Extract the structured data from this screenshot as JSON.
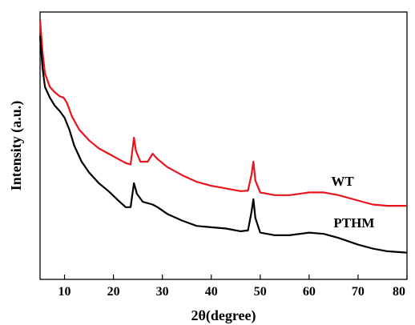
{
  "chart_data": {
    "type": "line",
    "title": "",
    "xlabel": "2θ(degree)",
    "ylabel": "Intensity (a.u.)",
    "xlim": [
      5,
      80
    ],
    "ylim": [
      0,
      100
    ],
    "x_ticks": [
      10,
      20,
      30,
      40,
      50,
      60,
      70,
      80
    ],
    "y_ticks_shown": false,
    "grid": false,
    "legend": "inline labels",
    "series": [
      {
        "name": "WT",
        "color": "#e8141b",
        "points": [
          [
            5,
            97
          ],
          [
            5.5,
            85
          ],
          [
            6,
            77
          ],
          [
            7,
            72
          ],
          [
            8,
            70
          ],
          [
            9,
            68.5
          ],
          [
            9.8,
            68
          ],
          [
            10.5,
            66
          ],
          [
            11.5,
            61
          ],
          [
            13,
            56
          ],
          [
            15,
            52
          ],
          [
            17,
            49
          ],
          [
            19,
            47
          ],
          [
            21,
            45
          ],
          [
            22.5,
            43.5
          ],
          [
            23.5,
            43
          ],
          [
            24.2,
            53
          ],
          [
            24.6,
            48
          ],
          [
            25.5,
            44
          ],
          [
            27,
            44
          ],
          [
            28,
            47
          ],
          [
            29,
            45
          ],
          [
            31,
            42
          ],
          [
            34,
            39
          ],
          [
            37,
            36.5
          ],
          [
            40,
            35
          ],
          [
            43,
            34
          ],
          [
            46,
            33
          ],
          [
            47.5,
            33.2
          ],
          [
            48.2,
            39
          ],
          [
            48.6,
            44
          ],
          [
            49,
            37
          ],
          [
            50,
            32.5
          ],
          [
            53,
            31.5
          ],
          [
            56,
            31.5
          ],
          [
            60,
            32.5
          ],
          [
            63,
            32.5
          ],
          [
            66,
            31.5
          ],
          [
            70,
            29.5
          ],
          [
            73,
            28
          ],
          [
            76,
            27.5
          ],
          [
            80,
            27.5
          ]
        ]
      },
      {
        "name": "PTHM",
        "color": "#000000",
        "points": [
          [
            5,
            91
          ],
          [
            5.5,
            79
          ],
          [
            6,
            72
          ],
          [
            7,
            68
          ],
          [
            8,
            65
          ],
          [
            9,
            63
          ],
          [
            10,
            60.5
          ],
          [
            11,
            56
          ],
          [
            12,
            50
          ],
          [
            13.5,
            44
          ],
          [
            15,
            40
          ],
          [
            17,
            36
          ],
          [
            19,
            33
          ],
          [
            21,
            29.5
          ],
          [
            22.5,
            27
          ],
          [
            23.5,
            27
          ],
          [
            24.2,
            36
          ],
          [
            24.8,
            32
          ],
          [
            26,
            29
          ],
          [
            28,
            28
          ],
          [
            29,
            27
          ],
          [
            31,
            24.5
          ],
          [
            34,
            22
          ],
          [
            37,
            20
          ],
          [
            40,
            19.5
          ],
          [
            43,
            19
          ],
          [
            46,
            18
          ],
          [
            47.5,
            18.3
          ],
          [
            48.2,
            25
          ],
          [
            48.6,
            30
          ],
          [
            49,
            23
          ],
          [
            50,
            17.5
          ],
          [
            53,
            16.5
          ],
          [
            56,
            16.5
          ],
          [
            60,
            17.5
          ],
          [
            63,
            17
          ],
          [
            66,
            15.5
          ],
          [
            70,
            13
          ],
          [
            73,
            11.5
          ],
          [
            76,
            10.5
          ],
          [
            80,
            10
          ]
        ]
      }
    ],
    "series_labels": [
      {
        "text": "WT",
        "x": 64.5,
        "y": 35
      },
      {
        "text": "PTHM",
        "x": 65,
        "y": 19.5
      }
    ]
  }
}
